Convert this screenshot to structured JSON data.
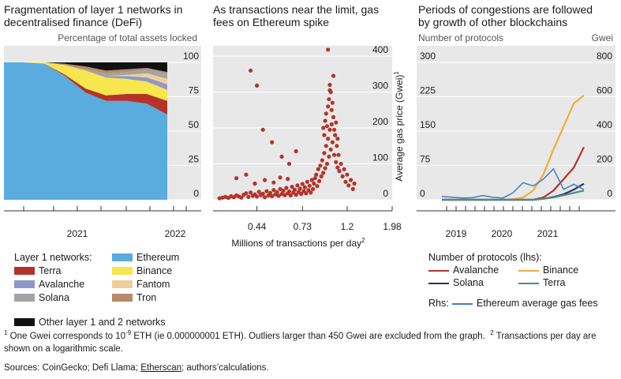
{
  "panels": {
    "left": {
      "title_lines": [
        "Fragmentation of layer 1 networks in",
        "decentralised finance (DeFi)"
      ],
      "axis_caption": "Percentage of total assets locked"
    },
    "middle": {
      "title_lines": [
        "As transactions near the limit, gas",
        "fees on Ethereum spike"
      ],
      "xlabel": "Millions of transactions per day",
      "xlabel_footnote": "2",
      "ylabel": "Average gas price (Gwei)",
      "ylabel_footnote": "1"
    },
    "right": {
      "title_lines": [
        "Periods of congestions are followed",
        "by growth of other blockchains"
      ],
      "left_axis_caption": "Number of protocols",
      "right_axis_caption": "Gwei"
    }
  },
  "legend_left": {
    "heading": "Layer 1 networks:",
    "items": [
      {
        "label": "Ethereum",
        "color": "#5aabde"
      },
      {
        "label": "Terra",
        "color": "#b5332a"
      },
      {
        "label": "Binance",
        "color": "#f7e64d"
      },
      {
        "label": "Avalanche",
        "color": "#8f97c9"
      },
      {
        "label": "Fantom",
        "color": "#efcf99"
      },
      {
        "label": "Solana",
        "color": "#a3a3a3"
      },
      {
        "label": "Tron",
        "color": "#b78a68"
      },
      {
        "label": "Other layer 1 and 2 networks",
        "color": "#111111"
      }
    ]
  },
  "legend_right": {
    "heading": "Number of protocols (lhs):",
    "items": [
      {
        "label": "Avalanche",
        "color": "#b5332a"
      },
      {
        "label": "Binance",
        "color": "#f3a93b"
      },
      {
        "label": "Solana",
        "color": "#2d2d5b"
      },
      {
        "label": "Terra",
        "color": "#4c8c86"
      }
    ],
    "rhs_prefix": "Rhs:",
    "rhs_label": "Ethereum average gas fees",
    "rhs_color": "#3d7ec8"
  },
  "footnote": {
    "n1": "1",
    "text1_before": "One Gwei corresponds to 10",
    "exponent": "-9",
    "text1_after": " ETH (ie 0.000000001 ETH). Outliers larger than 450 Gwei are excluded from the graph.",
    "n2": "2",
    "text2": "Transactions per day are shown on a logarithmic scale."
  },
  "sources": {
    "before": "Sources: CoinGecko; Defi Llama; ",
    "underlined": "Etherscan",
    "after": "; authors’calculations."
  },
  "chart_data": [
    {
      "type": "area",
      "stacked": true,
      "normalized_percent": true,
      "x": [
        "2020-09",
        "2020-11",
        "2021-01",
        "2021-03",
        "2021-05",
        "2021-07",
        "2021-09",
        "2021-11",
        "2022-01"
      ],
      "x_tick_labels": [
        "2021",
        "2022"
      ],
      "ylim": [
        0,
        100
      ],
      "y_ticks": [
        0,
        25,
        50,
        75,
        100
      ],
      "series": [
        {
          "name": "Ethereum",
          "values": [
            100,
            100,
            99,
            90,
            78,
            72,
            72,
            70,
            62
          ]
        },
        {
          "name": "Terra",
          "values": [
            0,
            0,
            0,
            1,
            3,
            4,
            5,
            7,
            10
          ]
        },
        {
          "name": "Binance",
          "values": [
            0,
            0,
            1,
            7,
            13,
            13,
            11,
            9,
            8
          ]
        },
        {
          "name": "Avalanche",
          "values": [
            0,
            0,
            0,
            0,
            0,
            1,
            2,
            3,
            4
          ]
        },
        {
          "name": "Fantom",
          "values": [
            0,
            0,
            0,
            0,
            0,
            0,
            1,
            3,
            4
          ]
        },
        {
          "name": "Solana",
          "values": [
            0,
            0,
            0,
            0,
            1,
            2,
            2,
            3,
            4
          ]
        },
        {
          "name": "Tron",
          "values": [
            0,
            0,
            0,
            1,
            2,
            2,
            2,
            1,
            1
          ]
        },
        {
          "name": "Other layer 1 and 2 networks",
          "values": [
            0,
            0,
            0,
            1,
            3,
            6,
            5,
            4,
            7
          ]
        }
      ],
      "grid": true,
      "y_axis_side": "right"
    },
    {
      "type": "scatter",
      "x_scale": "log",
      "xlabel": "Millions of transactions per day",
      "ylabel": "Average gas price (Gwei)",
      "x_ticks": [
        0.44,
        0.73,
        1.2,
        1.98
      ],
      "xlim": [
        0.27,
        1.98
      ],
      "ylim": [
        0,
        420
      ],
      "y_ticks": [
        0,
        100,
        200,
        300,
        400
      ],
      "color": "#b5332a",
      "points": [
        [
          0.29,
          4
        ],
        [
          0.3,
          6
        ],
        [
          0.31,
          8
        ],
        [
          0.32,
          5
        ],
        [
          0.33,
          10
        ],
        [
          0.34,
          7
        ],
        [
          0.35,
          12
        ],
        [
          0.36,
          9
        ],
        [
          0.37,
          6
        ],
        [
          0.38,
          14
        ],
        [
          0.39,
          18
        ],
        [
          0.4,
          8
        ],
        [
          0.41,
          20
        ],
        [
          0.42,
          11
        ],
        [
          0.43,
          15
        ],
        [
          0.44,
          9
        ],
        [
          0.45,
          22
        ],
        [
          0.46,
          13
        ],
        [
          0.47,
          17
        ],
        [
          0.48,
          7
        ],
        [
          0.49,
          24
        ],
        [
          0.5,
          12
        ],
        [
          0.51,
          19
        ],
        [
          0.52,
          10
        ],
        [
          0.53,
          27
        ],
        [
          0.54,
          15
        ],
        [
          0.55,
          21
        ],
        [
          0.56,
          11
        ],
        [
          0.57,
          30
        ],
        [
          0.58,
          16
        ],
        [
          0.59,
          25
        ],
        [
          0.6,
          13
        ],
        [
          0.61,
          33
        ],
        [
          0.62,
          18
        ],
        [
          0.63,
          23
        ],
        [
          0.64,
          12
        ],
        [
          0.65,
          36
        ],
        [
          0.66,
          20
        ],
        [
          0.67,
          28
        ],
        [
          0.68,
          14
        ],
        [
          0.69,
          40
        ],
        [
          0.7,
          22
        ],
        [
          0.71,
          31
        ],
        [
          0.72,
          16
        ],
        [
          0.73,
          44
        ],
        [
          0.74,
          24
        ],
        [
          0.75,
          35
        ],
        [
          0.76,
          18
        ],
        [
          0.77,
          50
        ],
        [
          0.78,
          27
        ],
        [
          0.79,
          39
        ],
        [
          0.8,
          20
        ],
        [
          0.81,
          55
        ],
        [
          0.82,
          30
        ],
        [
          0.83,
          45
        ],
        [
          0.84,
          60
        ],
        [
          0.85,
          70
        ],
        [
          0.86,
          38
        ],
        [
          0.87,
          85
        ],
        [
          0.88,
          52
        ],
        [
          0.89,
          95
        ],
        [
          0.9,
          65
        ],
        [
          0.91,
          110
        ],
        [
          0.92,
          75
        ],
        [
          0.93,
          130
        ],
        [
          0.94,
          88
        ],
        [
          0.95,
          150
        ],
        [
          0.96,
          100
        ],
        [
          0.97,
          170
        ],
        [
          0.98,
          120
        ],
        [
          0.99,
          195
        ],
        [
          1.0,
          140
        ],
        [
          1.01,
          210
        ],
        [
          1.02,
          160
        ],
        [
          1.03,
          230
        ],
        [
          1.04,
          125
        ],
        [
          1.05,
          180
        ],
        [
          1.06,
          105
        ],
        [
          1.07,
          150
        ],
        [
          1.08,
          90
        ],
        [
          1.09,
          125
        ],
        [
          1.1,
          80
        ],
        [
          1.12,
          100
        ],
        [
          1.14,
          65
        ],
        [
          1.16,
          85
        ],
        [
          1.18,
          50
        ],
        [
          1.2,
          70
        ],
        [
          1.22,
          40
        ],
        [
          1.25,
          55
        ],
        [
          1.28,
          30
        ],
        [
          1.3,
          45
        ],
        [
          0.95,
          240
        ],
        [
          0.97,
          260
        ],
        [
          0.98,
          280
        ],
        [
          1.0,
          300
        ],
        [
          1.01,
          250
        ],
        [
          0.99,
          320
        ],
        [
          1.02,
          270
        ],
        [
          0.92,
          200
        ],
        [
          0.94,
          220
        ],
        [
          0.96,
          205
        ],
        [
          0.93,
          180
        ],
        [
          1.04,
          195
        ],
        [
          1.06,
          215
        ],
        [
          1.08,
          170
        ],
        [
          0.41,
          360
        ],
        [
          0.44,
          318
        ],
        [
          0.47,
          195
        ],
        [
          0.52,
          160
        ],
        [
          0.58,
          120
        ],
        [
          0.63,
          100
        ],
        [
          0.68,
          135
        ],
        [
          0.35,
          60
        ],
        [
          0.39,
          70
        ],
        [
          0.43,
          45
        ],
        [
          0.48,
          55
        ],
        [
          0.53,
          48
        ],
        [
          0.57,
          62
        ],
        [
          0.62,
          58
        ],
        [
          0.97,
          418
        ],
        [
          1.03,
          345
        ],
        [
          0.99,
          305
        ]
      ]
    },
    {
      "type": "line",
      "x_tick_labels": [
        "2019",
        "2020",
        "2021"
      ],
      "x": [
        "2018-07",
        "2018-10",
        "2019-01",
        "2019-04",
        "2019-07",
        "2019-10",
        "2020-01",
        "2020-04",
        "2020-07",
        "2020-10",
        "2021-01",
        "2021-04",
        "2021-07",
        "2021-10",
        "2022-01"
      ],
      "left_axis": {
        "ylim": [
          0,
          300
        ],
        "y_ticks": [
          0,
          75,
          150,
          225,
          300
        ],
        "caption": "Number of protocols"
      },
      "right_axis": {
        "ylim": [
          0,
          800
        ],
        "y_ticks": [
          0,
          200,
          400,
          600,
          800
        ],
        "caption": "Gwei"
      },
      "series": [
        {
          "name": "Avalanche",
          "axis": "left",
          "color": "#b5332a",
          "values": [
            0,
            0,
            0,
            0,
            0,
            0,
            0,
            0,
            0,
            0,
            5,
            20,
            45,
            70,
            115
          ]
        },
        {
          "name": "Binance",
          "axis": "left",
          "color": "#f3a93b",
          "values": [
            0,
            0,
            0,
            0,
            0,
            0,
            0,
            1,
            5,
            20,
            55,
            110,
            160,
            210,
            228
          ]
        },
        {
          "name": "Solana",
          "axis": "left",
          "color": "#2d2d5b",
          "values": [
            0,
            0,
            0,
            0,
            0,
            0,
            0,
            0,
            0,
            0,
            2,
            6,
            12,
            22,
            35
          ]
        },
        {
          "name": "Terra",
          "axis": "left",
          "color": "#4c8c86",
          "values": [
            0,
            0,
            0,
            0,
            0,
            0,
            0,
            0,
            0,
            0,
            2,
            5,
            10,
            15,
            20
          ]
        },
        {
          "name": "Ethereum average gas fees",
          "axis": "right",
          "color": "#3d7ec8",
          "values": [
            20,
            15,
            10,
            12,
            25,
            15,
            10,
            40,
            100,
            80,
            120,
            180,
            60,
            90,
            60
          ]
        }
      ]
    }
  ]
}
